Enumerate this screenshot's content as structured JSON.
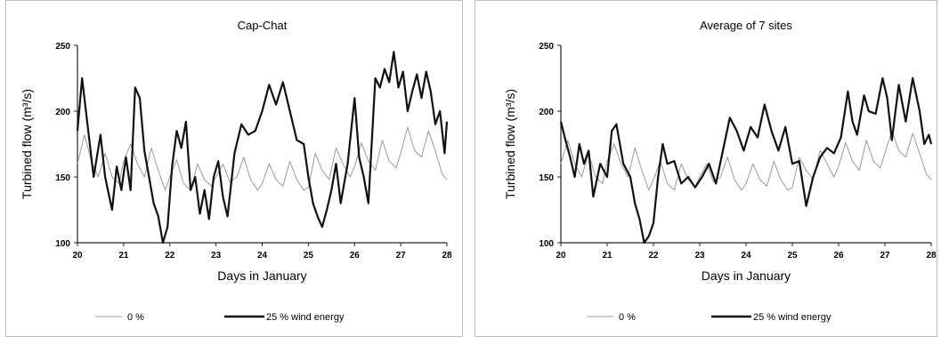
{
  "chart_data": [
    {
      "type": "line",
      "title": "Cap-Chat",
      "xlabel": "Days in January",
      "ylabel": "Turbined flow (m³/s)",
      "xlim": [
        20,
        28
      ],
      "ylim": [
        100,
        250
      ],
      "xticks": [
        20,
        21,
        22,
        23,
        24,
        25,
        26,
        27,
        28
      ],
      "yticks": [
        100,
        150,
        200,
        250
      ],
      "legend_position": "bottom",
      "grid": false,
      "series": [
        {
          "name": "0 %",
          "color": "#9a9a9a",
          "x": [
            20.0,
            20.15,
            20.3,
            20.45,
            20.6,
            20.75,
            20.9,
            21.0,
            21.15,
            21.3,
            21.45,
            21.6,
            21.75,
            21.9,
            22.0,
            22.15,
            22.3,
            22.45,
            22.6,
            22.75,
            22.9,
            23.0,
            23.15,
            23.3,
            23.45,
            23.6,
            23.75,
            23.9,
            24.0,
            24.15,
            24.3,
            24.45,
            24.6,
            24.75,
            24.9,
            25.0,
            25.15,
            25.3,
            25.45,
            25.6,
            25.75,
            25.9,
            26.0,
            26.15,
            26.3,
            26.45,
            26.6,
            26.75,
            26.9,
            27.0,
            27.15,
            27.3,
            27.45,
            27.6,
            27.75,
            27.9,
            28.0
          ],
          "y": [
            160,
            182,
            162,
            150,
            168,
            150,
            145,
            162,
            175,
            160,
            150,
            172,
            155,
            140,
            150,
            163,
            145,
            140,
            160,
            148,
            143,
            150,
            160,
            146,
            150,
            165,
            148,
            140,
            145,
            160,
            148,
            143,
            162,
            148,
            140,
            142,
            168,
            155,
            148,
            172,
            160,
            150,
            158,
            176,
            162,
            155,
            178,
            162,
            157,
            168,
            188,
            170,
            165,
            185,
            170,
            152,
            148
          ]
        },
        {
          "name": "25 % wind energy",
          "color": "#111111",
          "x": [
            20.0,
            20.1,
            20.2,
            20.35,
            20.5,
            20.6,
            20.75,
            20.85,
            20.95,
            21.05,
            21.15,
            21.25,
            21.35,
            21.45,
            21.55,
            21.65,
            21.75,
            21.85,
            21.95,
            22.05,
            22.15,
            22.25,
            22.35,
            22.45,
            22.55,
            22.65,
            22.75,
            22.85,
            22.95,
            23.05,
            23.15,
            23.25,
            23.4,
            23.55,
            23.7,
            23.85,
            24.0,
            24.15,
            24.3,
            24.45,
            24.6,
            24.75,
            24.9,
            25.0,
            25.1,
            25.2,
            25.3,
            25.4,
            25.5,
            25.6,
            25.7,
            25.85,
            26.0,
            26.1,
            26.2,
            26.3,
            26.45,
            26.55,
            26.65,
            26.75,
            26.85,
            26.95,
            27.05,
            27.15,
            27.25,
            27.35,
            27.45,
            27.55,
            27.65,
            27.75,
            27.85,
            27.95,
            28.0
          ],
          "y": [
            185,
            225,
            195,
            150,
            182,
            150,
            125,
            158,
            140,
            165,
            140,
            218,
            210,
            170,
            150,
            130,
            120,
            100,
            112,
            158,
            185,
            172,
            192,
            140,
            150,
            122,
            140,
            118,
            150,
            162,
            135,
            120,
            168,
            190,
            182,
            185,
            200,
            220,
            205,
            222,
            200,
            178,
            175,
            150,
            130,
            120,
            112,
            125,
            140,
            160,
            130,
            160,
            210,
            165,
            150,
            130,
            225,
            218,
            232,
            222,
            245,
            218,
            230,
            200,
            215,
            228,
            210,
            230,
            215,
            190,
            200,
            168,
            192
          ]
        }
      ]
    },
    {
      "type": "line",
      "title": "Average of 7 sites",
      "xlabel": "Days in January",
      "ylabel": "Turbined flow (m³/s)",
      "xlim": [
        20,
        28
      ],
      "ylim": [
        100,
        250
      ],
      "xticks": [
        20,
        21,
        22,
        23,
        24,
        25,
        26,
        27,
        28
      ],
      "yticks": [
        100,
        150,
        200,
        250
      ],
      "legend_position": "bottom",
      "grid": false,
      "series": [
        {
          "name": "0 %",
          "color": "#9a9a9a",
          "x": [
            20.0,
            20.15,
            20.3,
            20.45,
            20.6,
            20.75,
            20.9,
            21.0,
            21.15,
            21.3,
            21.45,
            21.6,
            21.75,
            21.9,
            22.0,
            22.15,
            22.3,
            22.45,
            22.6,
            22.75,
            22.9,
            23.0,
            23.15,
            23.3,
            23.45,
            23.6,
            23.75,
            23.9,
            24.0,
            24.15,
            24.3,
            24.45,
            24.6,
            24.75,
            24.9,
            25.0,
            25.15,
            25.3,
            25.45,
            25.6,
            25.75,
            25.9,
            26.0,
            26.15,
            26.3,
            26.45,
            26.6,
            26.75,
            26.9,
            27.0,
            27.15,
            27.3,
            27.45,
            27.6,
            27.75,
            27.9,
            28.0
          ],
          "y": [
            160,
            178,
            160,
            150,
            168,
            150,
            145,
            162,
            175,
            160,
            150,
            172,
            155,
            140,
            148,
            162,
            145,
            140,
            160,
            148,
            143,
            150,
            160,
            146,
            150,
            165,
            148,
            140,
            145,
            160,
            148,
            143,
            162,
            148,
            140,
            142,
            165,
            155,
            148,
            170,
            160,
            150,
            158,
            176,
            162,
            155,
            178,
            162,
            157,
            168,
            185,
            170,
            165,
            183,
            168,
            152,
            148
          ]
        },
        {
          "name": "25 % wind energy",
          "color": "#111111",
          "x": [
            20.0,
            20.1,
            20.2,
            20.3,
            20.4,
            20.5,
            20.6,
            20.7,
            20.85,
            21.0,
            21.1,
            21.2,
            21.35,
            21.5,
            21.6,
            21.7,
            21.8,
            21.9,
            22.0,
            22.1,
            22.2,
            22.3,
            22.45,
            22.6,
            22.75,
            22.9,
            23.05,
            23.2,
            23.35,
            23.5,
            23.65,
            23.8,
            23.95,
            24.1,
            24.25,
            24.4,
            24.55,
            24.7,
            24.85,
            25.0,
            25.15,
            25.3,
            25.45,
            25.6,
            25.75,
            25.9,
            26.05,
            26.2,
            26.3,
            26.4,
            26.55,
            26.65,
            26.8,
            26.95,
            27.05,
            27.15,
            27.3,
            27.45,
            27.6,
            27.75,
            27.85,
            27.95,
            28.0
          ],
          "y": [
            192,
            178,
            165,
            150,
            175,
            160,
            170,
            135,
            160,
            150,
            185,
            190,
            160,
            150,
            130,
            118,
            100,
            105,
            115,
            150,
            175,
            160,
            162,
            145,
            150,
            142,
            150,
            160,
            145,
            170,
            195,
            185,
            170,
            188,
            180,
            205,
            185,
            170,
            188,
            160,
            162,
            128,
            150,
            165,
            172,
            168,
            180,
            215,
            192,
            182,
            212,
            200,
            198,
            225,
            210,
            178,
            220,
            192,
            225,
            200,
            175,
            182,
            175
          ]
        }
      ]
    }
  ]
}
